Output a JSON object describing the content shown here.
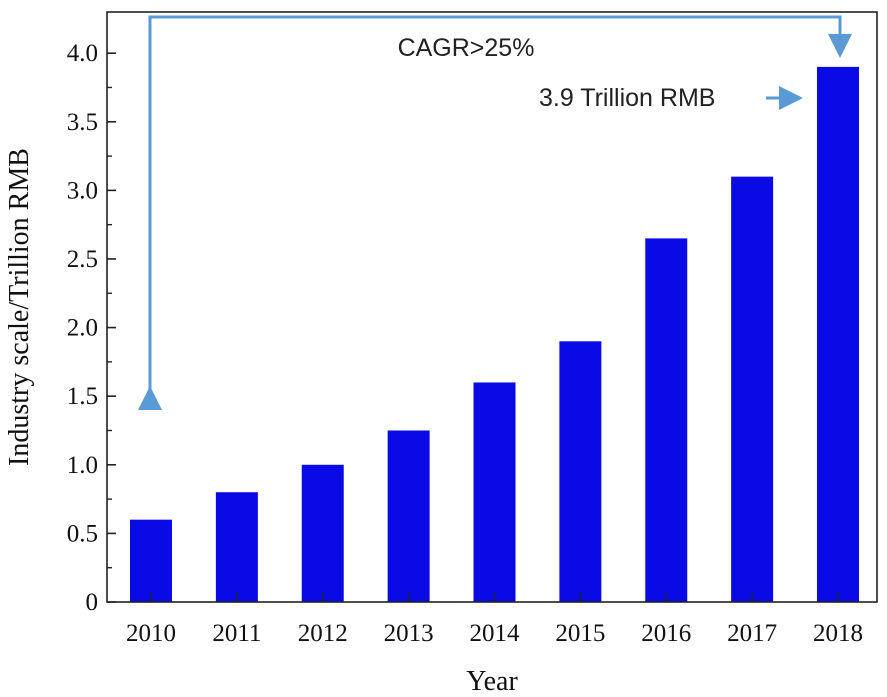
{
  "chart_data": {
    "type": "bar",
    "categories": [
      "2010",
      "2011",
      "2012",
      "2013",
      "2014",
      "2015",
      "2016",
      "2017",
      "2018"
    ],
    "values": [
      0.6,
      0.8,
      1.0,
      1.25,
      1.6,
      1.9,
      2.65,
      3.1,
      3.9
    ],
    "xlabel": "Year",
    "ylabel": "Industry scale/Trillion RMB",
    "ylim": [
      0,
      4.3
    ],
    "yticks": [
      "0",
      "0.5",
      "1.0",
      "1.5",
      "2.0",
      "2.5",
      "3.0",
      "3.5",
      "4.0"
    ],
    "ytick_values": [
      0,
      0.5,
      1.0,
      1.5,
      2.0,
      2.5,
      3.0,
      3.5,
      4.0
    ],
    "grid": false,
    "bar_color": "#0a0ae6",
    "annotations": {
      "cagr": "CAGR>25%",
      "last_value": "3.9 Trillion RMB",
      "arrow_color": "#5b9bd5"
    }
  }
}
